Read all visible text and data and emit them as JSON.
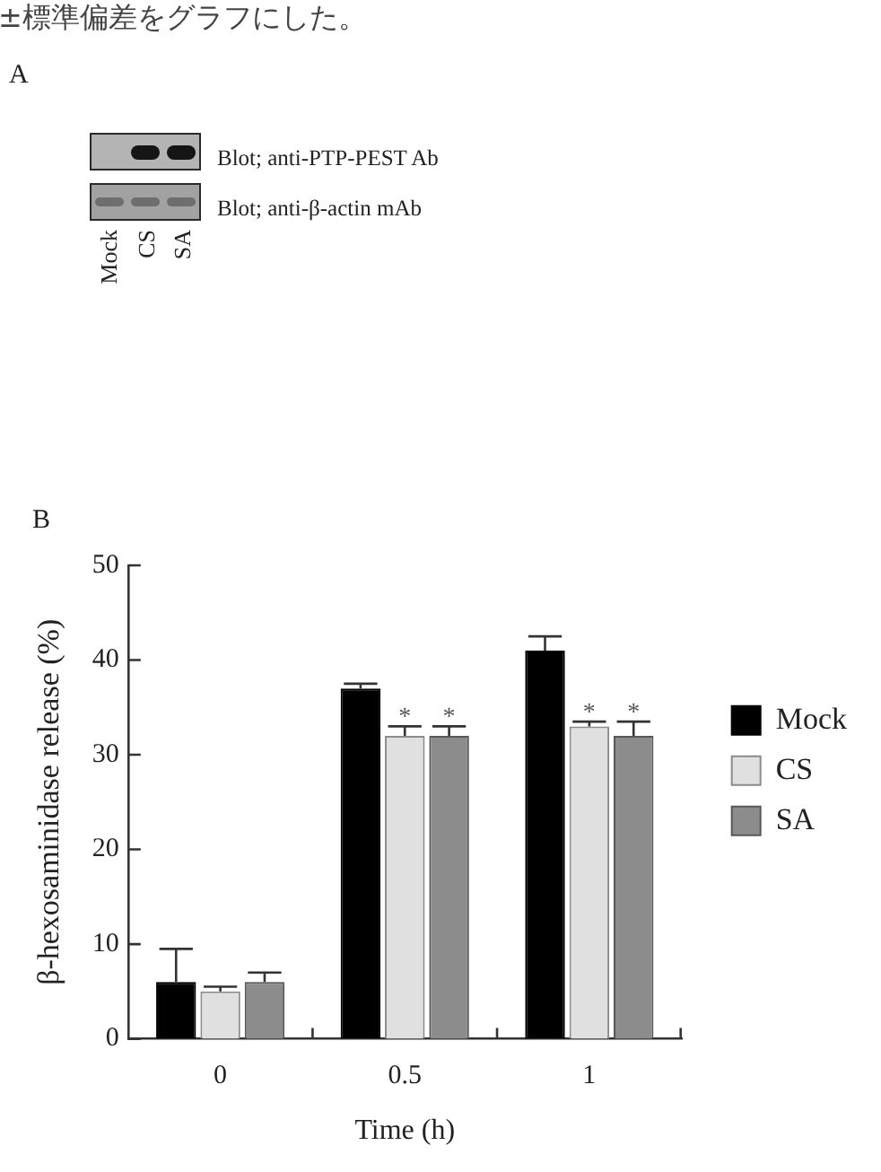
{
  "chart_data": [
    {
      "type": "other",
      "title": "A",
      "categories": [
        "Mock",
        "CS",
        "SA"
      ],
      "annotations": [
        "±標準偏差をグラフにした。",
        "Blot; anti-PTP-PEST Ab",
        "Blot; anti-β-actin mAb"
      ]
    },
    {
      "type": "bar",
      "title": "B",
      "categories": [
        "0",
        "0.5",
        "1"
      ],
      "series": [
        {
          "name": "Mock",
          "color": "#000000",
          "values": [
            6,
            37,
            41
          ],
          "errors": [
            [
              6,
              9.5
            ],
            [
              37,
              37.5
            ],
            [
              41,
              42.5
            ]
          ]
        },
        {
          "name": "CS",
          "color": "#e0e0e0",
          "values": [
            5,
            32,
            33
          ],
          "errors": [
            [
              5,
              5.5
            ],
            [
              32,
              33
            ],
            [
              33,
              33.5
            ]
          ],
          "value_labels": [
            null,
            "*",
            "*"
          ]
        },
        {
          "name": "SA",
          "color": "#8c8c8c",
          "values": [
            6,
            32,
            32
          ],
          "errors": [
            [
              6,
              7
            ],
            [
              32,
              33
            ],
            [
              32,
              33.5
            ]
          ],
          "value_labels": [
            null,
            "*",
            "*"
          ]
        }
      ],
      "xlabel": "Time (h)",
      "ylabel": "β-hexosaminidase release (%)",
      "ylim": [
        0,
        50
      ],
      "yticks": [
        0,
        10,
        20,
        30,
        40,
        50
      ],
      "grid": false,
      "legend": "right"
    }
  ]
}
